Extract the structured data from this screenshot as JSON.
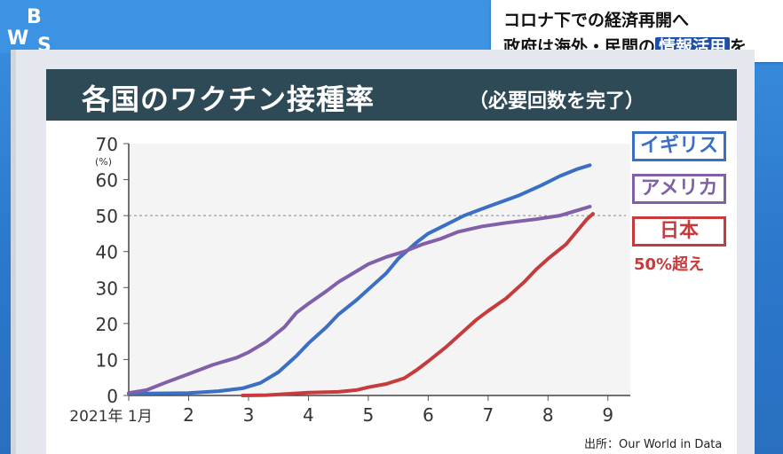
{
  "branding": {
    "logo_text": "WBS"
  },
  "headline": {
    "line1": "コロナ下での経済再開へ",
    "line2_pre": "政府は海外・民間の",
    "line2_highlight": "情報活用",
    "line2_post": "を"
  },
  "chart_data": {
    "type": "line",
    "title": "各国のワクチン接種率",
    "subtitle": "（必要回数を完了）",
    "ylabel": "(%)",
    "ylim": [
      0,
      70
    ],
    "yticks": [
      0,
      10,
      20,
      30,
      40,
      50,
      60,
      70
    ],
    "xlim": [
      1,
      9.3
    ],
    "xticks": [
      {
        "value": 1,
        "label": "2021年 1月"
      },
      {
        "value": 2,
        "label": "2"
      },
      {
        "value": 3,
        "label": "3"
      },
      {
        "value": 4,
        "label": "4"
      },
      {
        "value": 5,
        "label": "5"
      },
      {
        "value": 6,
        "label": "6"
      },
      {
        "value": 7,
        "label": "7"
      },
      {
        "value": 8,
        "label": "8"
      },
      {
        "value": 9,
        "label": "9"
      }
    ],
    "reference_line": 50,
    "series": [
      {
        "name": "イギリス",
        "color": "#3a6fc4",
        "points": [
          [
            1,
            0.5
          ],
          [
            1.5,
            0.6
          ],
          [
            2,
            0.7
          ],
          [
            2.5,
            1.2
          ],
          [
            2.9,
            2
          ],
          [
            3.2,
            3.5
          ],
          [
            3.5,
            6.5
          ],
          [
            3.8,
            11
          ],
          [
            4,
            14.5
          ],
          [
            4.3,
            19
          ],
          [
            4.5,
            22.5
          ],
          [
            4.8,
            26.5
          ],
          [
            5,
            29.5
          ],
          [
            5.3,
            34
          ],
          [
            5.5,
            38
          ],
          [
            5.8,
            42.5
          ],
          [
            6,
            45
          ],
          [
            6.3,
            47.5
          ],
          [
            6.6,
            50
          ],
          [
            7,
            52.5
          ],
          [
            7.5,
            55.5
          ],
          [
            7.9,
            58.5
          ],
          [
            8.2,
            61
          ],
          [
            8.5,
            63
          ],
          [
            8.7,
            64
          ]
        ]
      },
      {
        "name": "アメリカ",
        "color": "#8060a8",
        "points": [
          [
            1,
            0.7
          ],
          [
            1.3,
            1.5
          ],
          [
            1.6,
            3.5
          ],
          [
            2,
            6
          ],
          [
            2.4,
            8.5
          ],
          [
            2.8,
            10.5
          ],
          [
            3,
            12
          ],
          [
            3.3,
            15
          ],
          [
            3.6,
            19
          ],
          [
            3.8,
            23
          ],
          [
            4,
            25.5
          ],
          [
            4.3,
            29
          ],
          [
            4.5,
            31.5
          ],
          [
            4.8,
            34.5
          ],
          [
            5,
            36.5
          ],
          [
            5.3,
            38.5
          ],
          [
            5.6,
            40
          ],
          [
            5.9,
            42
          ],
          [
            6.2,
            43.5
          ],
          [
            6.5,
            45.5
          ],
          [
            6.9,
            47
          ],
          [
            7.3,
            48
          ],
          [
            7.8,
            49
          ],
          [
            8.2,
            50
          ],
          [
            8.5,
            51.5
          ],
          [
            8.7,
            52.5
          ]
        ]
      },
      {
        "name": "日本",
        "color": "#c63c3c",
        "points": [
          [
            2.9,
            0
          ],
          [
            3.3,
            0.1
          ],
          [
            3.7,
            0.5
          ],
          [
            4,
            0.8
          ],
          [
            4.5,
            1
          ],
          [
            4.8,
            1.5
          ],
          [
            5,
            2.3
          ],
          [
            5.3,
            3.2
          ],
          [
            5.6,
            4.8
          ],
          [
            5.8,
            7
          ],
          [
            6,
            9.5
          ],
          [
            6.3,
            13.5
          ],
          [
            6.6,
            18
          ],
          [
            6.8,
            21
          ],
          [
            7,
            23.5
          ],
          [
            7.3,
            27
          ],
          [
            7.6,
            31.5
          ],
          [
            7.8,
            35
          ],
          [
            8,
            38
          ],
          [
            8.3,
            42
          ],
          [
            8.5,
            46
          ],
          [
            8.65,
            49
          ],
          [
            8.75,
            50.5
          ]
        ]
      }
    ],
    "annotation": "50%超え",
    "source": "出所：Our World in Data"
  }
}
